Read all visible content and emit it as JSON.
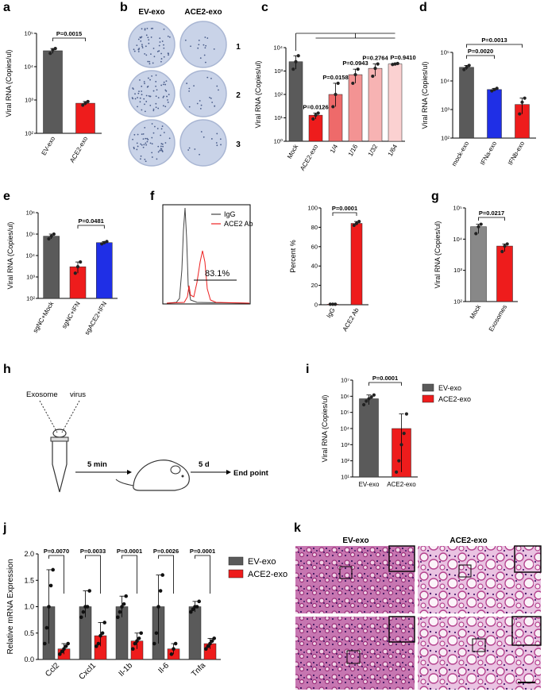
{
  "panel_labels": [
    "a",
    "b",
    "c",
    "d",
    "e",
    "f",
    "g",
    "h",
    "i",
    "j",
    "k"
  ],
  "colors": {
    "gray": "#5a5a5a",
    "red": "#ee1c1c",
    "blue": "#1f2fe6",
    "pink1": "#ee6a6a",
    "pink2": "#f39393",
    "pink3": "#f7b3b3",
    "pink4": "#fbd1d1",
    "he_bg": "#e9b9de",
    "he_tissue": "#b5448f",
    "plate": "#c9d3e8",
    "plate_dot": "#4a5d8a"
  },
  "chart_data": [
    {
      "id": "a",
      "type": "bar",
      "ylabel": "Viral RNA (Copies/ul)",
      "scale": "log",
      "ylim": [
        100,
        100000
      ],
      "yticks": [
        "10²",
        "10³",
        "10⁴",
        "10⁵"
      ],
      "categories": [
        "EV-exo",
        "ACE2-exo"
      ],
      "values": [
        30000,
        800
      ],
      "points": [
        [
          25000,
          32000,
          35000
        ],
        [
          700,
          800,
          900
        ]
      ],
      "pvalues": [
        {
          "from": 0,
          "to": 1,
          "text": "P=0.0015"
        }
      ]
    },
    {
      "id": "c",
      "type": "bar",
      "ylabel": "Viral RNA (Copies/ul)",
      "scale": "log",
      "ylim": [
        1,
        10000
      ],
      "yticks": [
        "10⁰",
        "10¹",
        "10²",
        "10³",
        "10⁴"
      ],
      "categories": [
        "Mock",
        "ACE2-exo",
        "1/4",
        "1/16",
        "1/32",
        "1/64"
      ],
      "values": [
        2500,
        13,
        100,
        700,
        1300,
        2000
      ],
      "points": [
        [
          1200,
          2500,
          4500
        ],
        [
          9,
          13,
          16
        ],
        [
          30,
          100,
          300
        ],
        [
          300,
          700,
          1200
        ],
        [
          600,
          1300,
          2000
        ],
        [
          1900,
          2000,
          2100
        ]
      ],
      "pvalues": [
        {
          "bar": 1,
          "text": "P=0.0126"
        },
        {
          "bar": 2,
          "text": "P=0.0158"
        },
        {
          "bar": 3,
          "text": "P=0.0943"
        },
        {
          "bar": 4,
          "text": "P=0.2764"
        },
        {
          "bar": 5,
          "text": "P=0.9410"
        }
      ]
    },
    {
      "id": "d",
      "type": "bar",
      "ylabel": "Viral RNA (Copies/ul)",
      "scale": "log",
      "ylim": [
        100,
        100000
      ],
      "yticks": [
        "10²",
        "10³",
        "10⁴",
        "10⁵"
      ],
      "categories": [
        "mock-exo",
        "IFNa-exo",
        "IFNb-exo"
      ],
      "values": [
        30000,
        5000,
        1500
      ],
      "points": [
        [
          25000,
          30000,
          35000
        ],
        [
          4500,
          5000,
          5500
        ],
        [
          700,
          1800,
          2500
        ]
      ],
      "pvalues": [
        {
          "from": 0,
          "to": 1,
          "text": "P=0.0020"
        },
        {
          "from": 0,
          "to": 2,
          "text": "P=0.0013"
        }
      ]
    },
    {
      "id": "e",
      "type": "bar",
      "ylabel": "Viral RNA (Copies/ul)",
      "scale": "log",
      "ylim": [
        100,
        1000000
      ],
      "yticks": [
        "10²",
        "10³",
        "10⁴",
        "10⁵",
        "10⁶"
      ],
      "categories": [
        "sgNC+Mock",
        "sgNC+IFN",
        "sgACE2+IFN"
      ],
      "values": [
        80000,
        3000,
        40000
      ],
      "points": [
        [
          60000,
          80000,
          100000
        ],
        [
          1500,
          3000,
          5000
        ],
        [
          35000,
          40000,
          45000
        ]
      ],
      "pvalues": [
        {
          "from": 1,
          "to": 2,
          "text": "P=0.0481"
        }
      ]
    },
    {
      "id": "f_hist",
      "type": "histogram",
      "legend": [
        "IgG",
        "ACE2 Ab"
      ],
      "gate_label": "83.1%"
    },
    {
      "id": "f",
      "type": "bar",
      "ylabel": "Percent %",
      "scale": "linear",
      "ylim": [
        0,
        100
      ],
      "yticks": [
        "0",
        "20",
        "40",
        "60",
        "80",
        "100"
      ],
      "categories": [
        "IgG",
        "ACE2 Ab"
      ],
      "values": [
        0.5,
        84
      ],
      "points": [
        [
          0.5,
          0.5,
          0.5
        ],
        [
          82,
          84,
          86
        ]
      ],
      "pvalues": [
        {
          "from": 0,
          "to": 1,
          "text": "P=0.0001"
        }
      ]
    },
    {
      "id": "g",
      "type": "bar",
      "ylabel": "Viral RNA (Copies/ul)",
      "scale": "log",
      "ylim": [
        100,
        100000
      ],
      "yticks": [
        "10²",
        "10³",
        "10⁴",
        "10⁵"
      ],
      "categories": [
        "Mock",
        "Exosomes"
      ],
      "values": [
        25000,
        6000
      ],
      "points": [
        [
          15000,
          25000,
          30000
        ],
        [
          4000,
          6000,
          7000
        ]
      ],
      "pvalues": [
        {
          "from": 0,
          "to": 1,
          "text": "P=0.0217"
        }
      ]
    },
    {
      "id": "i",
      "type": "bar",
      "ylabel": "Viral RNA (Copies/ul)",
      "scale": "log",
      "ylim": [
        10,
        10000000
      ],
      "yticks": [
        "10¹",
        "10²",
        "10³",
        "10⁴",
        "10⁵",
        "10⁶",
        "10⁷"
      ],
      "categories": [
        "EV-exo",
        "ACE2-exo"
      ],
      "values": [
        700000,
        10000
      ],
      "points": [
        [
          300000,
          500000,
          700000,
          900000,
          1200000
        ],
        [
          20,
          100,
          1000,
          5000,
          80000
        ]
      ],
      "legend": [
        "EV-exo",
        "ACE2-exo"
      ],
      "pvalues": [
        {
          "from": 0,
          "to": 1,
          "text": "P=0.0001"
        }
      ]
    },
    {
      "id": "j",
      "type": "bar",
      "ylabel": "Relative mRNA Expression",
      "scale": "linear",
      "ylim": [
        0,
        2.0
      ],
      "yticks": [
        "0.0",
        "0.5",
        "1.0",
        "1.5",
        "2.0"
      ],
      "categories": [
        "Ccl2",
        "Cxcl1",
        "Il-1b",
        "Il-6",
        "Tnfa"
      ],
      "series": [
        {
          "name": "EV-exo",
          "values": [
            1.0,
            1.0,
            1.0,
            1.0,
            1.0
          ],
          "points": [
            [
              0.3,
              0.6,
              1.0,
              1.4,
              1.7
            ],
            [
              0.8,
              0.9,
              1.0,
              1.0,
              1.3
            ],
            [
              0.8,
              0.9,
              1.0,
              1.05,
              1.2
            ],
            [
              0.3,
              0.5,
              1.0,
              1.3,
              1.6
            ],
            [
              0.9,
              0.95,
              1.0,
              1.0,
              1.1
            ]
          ]
        },
        {
          "name": "ACE2-exo",
          "values": [
            0.2,
            0.45,
            0.35,
            0.2,
            0.3
          ],
          "points": [
            [
              0.1,
              0.15,
              0.2,
              0.25,
              0.3
            ],
            [
              0.25,
              0.3,
              0.45,
              0.5,
              0.7
            ],
            [
              0.2,
              0.3,
              0.35,
              0.4,
              0.5
            ],
            [
              0.1,
              0.2,
              0.3
            ],
            [
              0.2,
              0.25,
              0.3,
              0.35,
              0.4
            ]
          ]
        }
      ],
      "legend": [
        "EV-exo",
        "ACE2-exo"
      ],
      "pvalues": [
        "P=0.0070",
        "P=0.0033",
        "P=0.0001",
        "P=0.0026",
        "P=0.0001"
      ]
    }
  ],
  "panel_b": {
    "columns": [
      "EV-exo",
      "ACE2-exo"
    ],
    "rows": [
      "1",
      "2",
      "3"
    ]
  },
  "panel_h": {
    "labels": [
      "Exosome",
      "virus",
      "5 min",
      "5 d",
      "End point"
    ]
  },
  "panel_k": {
    "columns": [
      "EV-exo",
      "ACE2-exo"
    ]
  }
}
